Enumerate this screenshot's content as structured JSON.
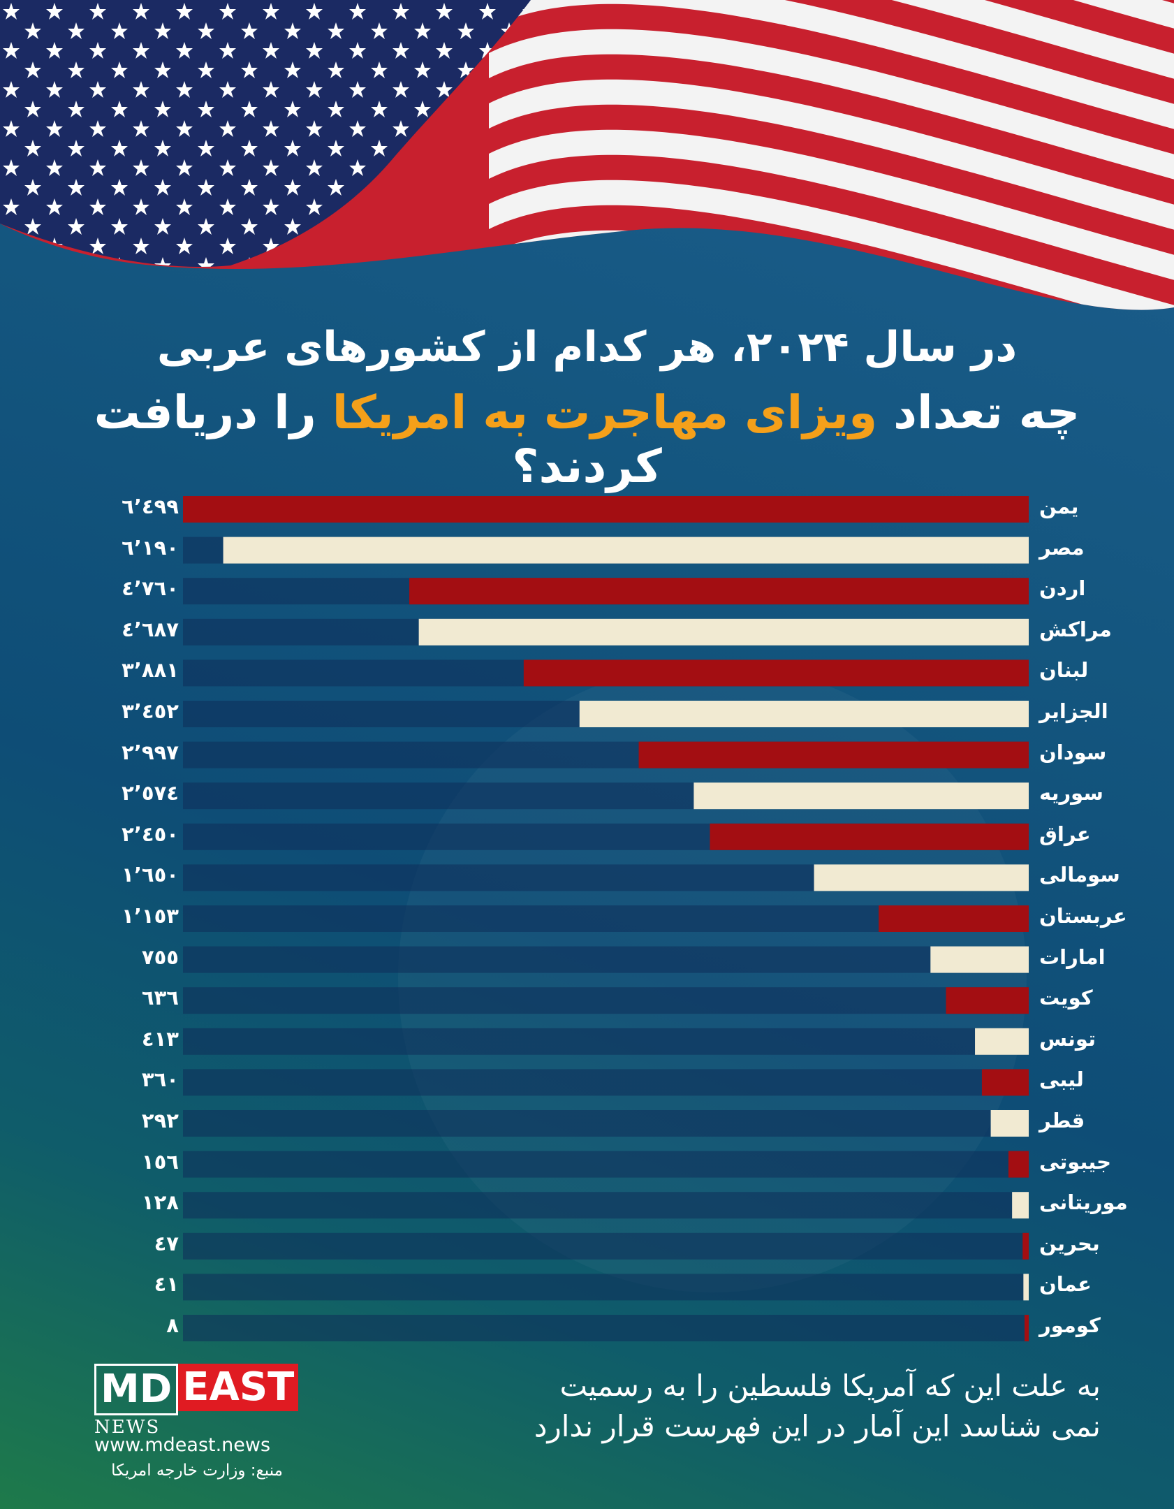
{
  "title": {
    "line1": "در سال ۲۰۲۴، هر کدام از کشورهای عربی",
    "line2_before": "چه تعداد ",
    "line2_highlight": "ویزای مهاجرت به امریکا",
    "line2_after": " را دریافت کردند؟"
  },
  "chart_data": {
    "type": "bar",
    "orientation": "horizontal",
    "title": "در سال ۲۰۲۴، هر کدام از کشورهای عربی چه تعداد ویزای مهاجرت به امریکا را دریافت کردند؟",
    "xlim": [
      0,
      6499
    ],
    "grid": false,
    "legend": "none",
    "colors": [
      "#a30e12",
      "#f1ead2"
    ],
    "categories": [
      "یمن",
      "مصر",
      "اردن",
      "مراکش",
      "لبنان",
      "الجزایر",
      "سودان",
      "سوریه",
      "عراق",
      "سومالی",
      "عربستان",
      "امارات",
      "کویت",
      "تونس",
      "لیبی",
      "قطر",
      "جیبوتی",
      "موریتانی",
      "بحرین",
      "عمان",
      "کومور"
    ],
    "values": [
      6499,
      6190,
      4760,
      4687,
      3881,
      3452,
      2997,
      2574,
      2450,
      1650,
      1153,
      755,
      636,
      413,
      360,
      292,
      156,
      128,
      47,
      41,
      8
    ],
    "value_labels": [
      "٦٬٤٩٩",
      "٦٬١٩٠",
      "٤٬٧٦٠",
      "٤٬٦٨٧",
      "٣٬٨٨١",
      "٣٬٤٥٢",
      "٢٬٩٩٧",
      "٢٬٥٧٤",
      "٢٬٤٥٠",
      "١٬٦٥٠",
      "١٬١٥٣",
      "٧٥٥",
      "٦٣٦",
      "٤١٣",
      "٣٦٠",
      "٢٩٢",
      "١٥٦",
      "١٢٨",
      "٤٧",
      "٤١",
      "٨"
    ]
  },
  "note": {
    "line1": "به علت این که آمریکا فلسطین را به رسمیت",
    "line2": "نمی شناسد این آمار در این فهرست قرار ندارد"
  },
  "logo": {
    "md": "MD",
    "east": "EAST",
    "news": "NEWS"
  },
  "url": "www.mdeast.news",
  "source": "منبع: وزارت خارجه امریکا"
}
